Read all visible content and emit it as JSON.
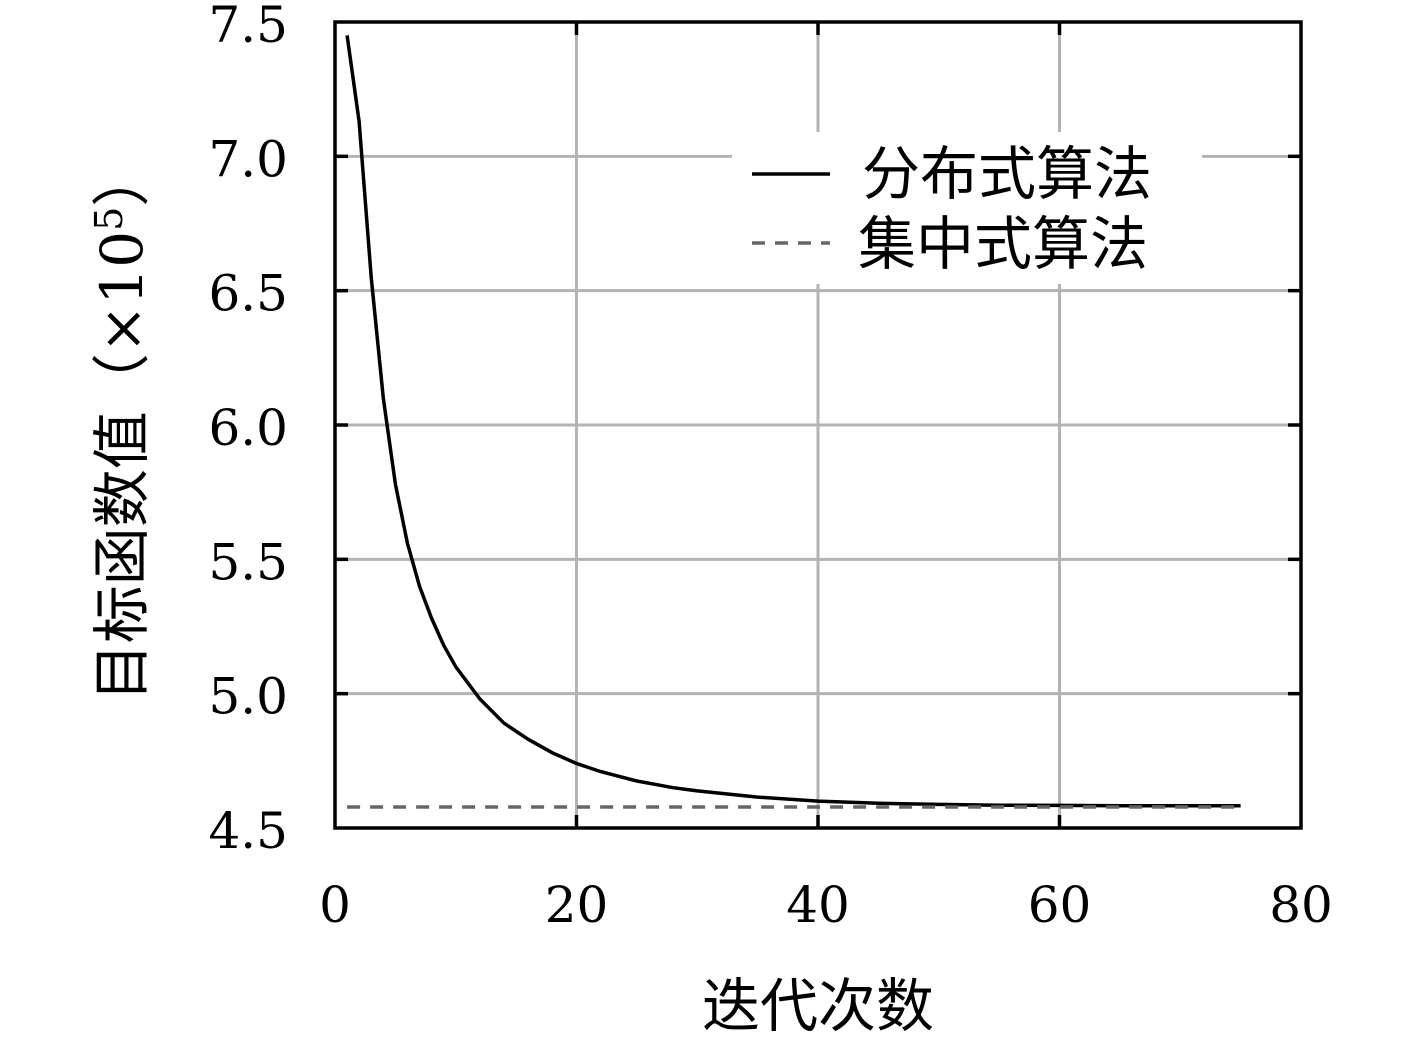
{
  "chart_data": {
    "type": "line",
    "title": "",
    "xlabel": "迭代次数",
    "ylabel": "目标函数值（×10",
    "ylabel_exponent": "5",
    "ylabel_close": "）",
    "xlim": [
      0,
      80
    ],
    "ylim": [
      4.5,
      7.5
    ],
    "xticks": [
      0,
      20,
      40,
      60,
      80
    ],
    "xtick_labels": [
      "0",
      "20",
      "40",
      "60",
      "80"
    ],
    "yticks": [
      4.5,
      5.0,
      5.5,
      6.0,
      6.5,
      7.0,
      7.5
    ],
    "ytick_labels": [
      "4.5",
      "5.0",
      "5.5",
      "6.0",
      "6.5",
      "7.0",
      "7.5"
    ],
    "grid": true,
    "legend_position": "top-right",
    "series": [
      {
        "name": "分布式算法",
        "style": "solid",
        "color": "#000000",
        "x": [
          1,
          2,
          3,
          4,
          5,
          6,
          7,
          8,
          9,
          10,
          12,
          14,
          16,
          18,
          20,
          22,
          25,
          28,
          30,
          35,
          40,
          45,
          50,
          55,
          60,
          65,
          70,
          75
        ],
        "y": [
          7.45,
          7.13,
          6.55,
          6.1,
          5.78,
          5.56,
          5.4,
          5.28,
          5.18,
          5.1,
          4.98,
          4.89,
          4.83,
          4.78,
          4.74,
          4.71,
          4.675,
          4.65,
          4.638,
          4.615,
          4.6,
          4.592,
          4.588,
          4.585,
          4.584,
          4.583,
          4.583,
          4.583
        ]
      },
      {
        "name": "集中式算法",
        "style": "dashed",
        "color": "#666666",
        "x": [
          1,
          75
        ],
        "y": [
          4.578,
          4.578
        ]
      }
    ]
  },
  "colors": {
    "grid": "#b3b3b3",
    "axis": "#000000",
    "background": "#ffffff"
  }
}
